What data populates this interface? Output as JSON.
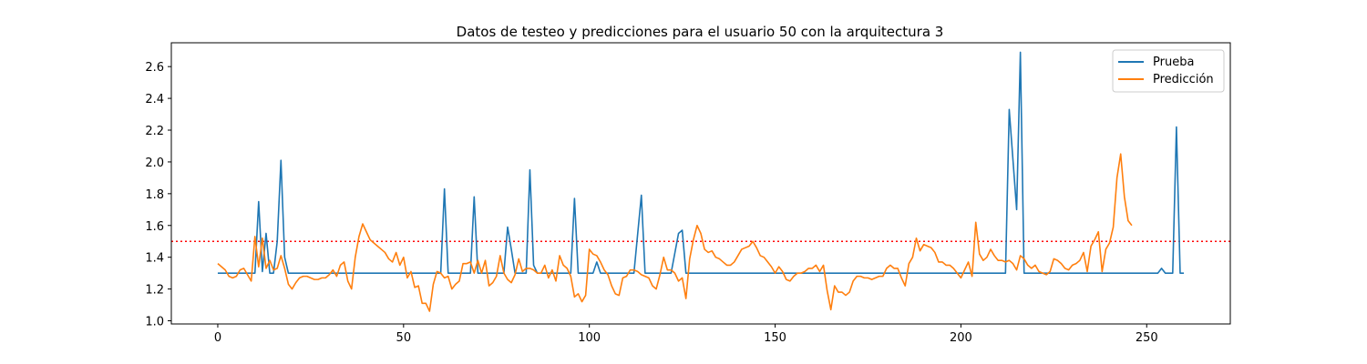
{
  "chart_data": {
    "type": "line",
    "title": "Datos de testeo y predicciones para el usuario 50 con la arquitectura 3",
    "xlabel": "",
    "ylabel": "",
    "xlim": [
      -12.5,
      272.5
    ],
    "ylim": [
      0.98,
      2.75
    ],
    "xticks": [
      0,
      50,
      100,
      150,
      200,
      250
    ],
    "yticks": [
      1.0,
      1.2,
      1.4,
      1.6,
      1.8,
      2.0,
      2.2,
      2.4,
      2.6
    ],
    "grid": false,
    "legend_position": "top-right",
    "threshold": {
      "value": 1.5,
      "color": "#ff0000",
      "style": "dotted"
    },
    "series": [
      {
        "name": "Prueba",
        "color": "#1f77b4",
        "points": [
          [
            0,
            1.3
          ],
          [
            10,
            1.3
          ],
          [
            11,
            1.75
          ],
          [
            12,
            1.31
          ],
          [
            13,
            1.55
          ],
          [
            14,
            1.3
          ],
          [
            15,
            1.3
          ],
          [
            16,
            1.5
          ],
          [
            17,
            2.01
          ],
          [
            18,
            1.4
          ],
          [
            19,
            1.3
          ],
          [
            60,
            1.3
          ],
          [
            61,
            1.83
          ],
          [
            62,
            1.3
          ],
          [
            68,
            1.3
          ],
          [
            69,
            1.78
          ],
          [
            70,
            1.3
          ],
          [
            77,
            1.3
          ],
          [
            78,
            1.59
          ],
          [
            79,
            1.45
          ],
          [
            80,
            1.3
          ],
          [
            83,
            1.3
          ],
          [
            84,
            1.95
          ],
          [
            85,
            1.35
          ],
          [
            86,
            1.3
          ],
          [
            95,
            1.3
          ],
          [
            96,
            1.77
          ],
          [
            97,
            1.3
          ],
          [
            101,
            1.3
          ],
          [
            102,
            1.37
          ],
          [
            103,
            1.3
          ],
          [
            112,
            1.3
          ],
          [
            114,
            1.79
          ],
          [
            115,
            1.3
          ],
          [
            122,
            1.3
          ],
          [
            124,
            1.55
          ],
          [
            125,
            1.57
          ],
          [
            126,
            1.3
          ],
          [
            212,
            1.3
          ],
          [
            213,
            2.33
          ],
          [
            215,
            1.7
          ],
          [
            216,
            2.69
          ],
          [
            217,
            1.3
          ],
          [
            253,
            1.3
          ],
          [
            254,
            1.33
          ],
          [
            255,
            1.3
          ],
          [
            257,
            1.3
          ],
          [
            258,
            2.22
          ],
          [
            259,
            1.3
          ],
          [
            260,
            1.3
          ]
        ]
      },
      {
        "name": "Predicción",
        "color": "#ff7f0e",
        "points": [
          [
            0,
            1.36
          ],
          [
            1,
            1.34
          ],
          [
            2,
            1.32
          ],
          [
            3,
            1.28
          ],
          [
            4,
            1.27
          ],
          [
            5,
            1.28
          ],
          [
            6,
            1.32
          ],
          [
            7,
            1.33
          ],
          [
            8,
            1.29
          ],
          [
            9,
            1.25
          ],
          [
            10,
            1.53
          ],
          [
            11,
            1.34
          ],
          [
            12,
            1.52
          ],
          [
            13,
            1.33
          ],
          [
            14,
            1.38
          ],
          [
            15,
            1.32
          ],
          [
            16,
            1.33
          ],
          [
            17,
            1.41
          ],
          [
            18,
            1.33
          ],
          [
            19,
            1.23
          ],
          [
            20,
            1.2
          ],
          [
            21,
            1.24
          ],
          [
            22,
            1.27
          ],
          [
            23,
            1.28
          ],
          [
            24,
            1.28
          ],
          [
            25,
            1.27
          ],
          [
            26,
            1.26
          ],
          [
            27,
            1.26
          ],
          [
            28,
            1.27
          ],
          [
            29,
            1.27
          ],
          [
            30,
            1.29
          ],
          [
            31,
            1.32
          ],
          [
            32,
            1.28
          ],
          [
            33,
            1.35
          ],
          [
            34,
            1.37
          ],
          [
            35,
            1.25
          ],
          [
            36,
            1.2
          ],
          [
            37,
            1.4
          ],
          [
            38,
            1.53
          ],
          [
            39,
            1.61
          ],
          [
            40,
            1.56
          ],
          [
            41,
            1.51
          ],
          [
            42,
            1.49
          ],
          [
            43,
            1.47
          ],
          [
            44,
            1.45
          ],
          [
            45,
            1.43
          ],
          [
            46,
            1.39
          ],
          [
            47,
            1.37
          ],
          [
            48,
            1.43
          ],
          [
            49,
            1.35
          ],
          [
            50,
            1.4
          ],
          [
            51,
            1.27
          ],
          [
            52,
            1.31
          ],
          [
            53,
            1.21
          ],
          [
            54,
            1.22
          ],
          [
            55,
            1.11
          ],
          [
            56,
            1.11
          ],
          [
            57,
            1.06
          ],
          [
            58,
            1.23
          ],
          [
            59,
            1.31
          ],
          [
            60,
            1.3
          ],
          [
            61,
            1.27
          ],
          [
            62,
            1.28
          ],
          [
            63,
            1.2
          ],
          [
            64,
            1.23
          ],
          [
            65,
            1.25
          ],
          [
            66,
            1.36
          ],
          [
            67,
            1.36
          ],
          [
            68,
            1.37
          ],
          [
            69,
            1.3
          ],
          [
            70,
            1.38
          ],
          [
            71,
            1.3
          ],
          [
            72,
            1.38
          ],
          [
            73,
            1.22
          ],
          [
            74,
            1.24
          ],
          [
            75,
            1.28
          ],
          [
            76,
            1.41
          ],
          [
            77,
            1.3
          ],
          [
            78,
            1.26
          ],
          [
            79,
            1.24
          ],
          [
            80,
            1.29
          ],
          [
            81,
            1.39
          ],
          [
            82,
            1.31
          ],
          [
            83,
            1.33
          ],
          [
            84,
            1.33
          ],
          [
            85,
            1.32
          ],
          [
            86,
            1.3
          ],
          [
            87,
            1.3
          ],
          [
            88,
            1.35
          ],
          [
            89,
            1.27
          ],
          [
            90,
            1.32
          ],
          [
            91,
            1.25
          ],
          [
            92,
            1.41
          ],
          [
            93,
            1.35
          ],
          [
            94,
            1.33
          ],
          [
            95,
            1.28
          ],
          [
            96,
            1.15
          ],
          [
            97,
            1.17
          ],
          [
            98,
            1.12
          ],
          [
            99,
            1.16
          ],
          [
            100,
            1.45
          ],
          [
            101,
            1.42
          ],
          [
            102,
            1.41
          ],
          [
            103,
            1.37
          ],
          [
            104,
            1.32
          ],
          [
            105,
            1.29
          ],
          [
            106,
            1.22
          ],
          [
            107,
            1.17
          ],
          [
            108,
            1.16
          ],
          [
            109,
            1.27
          ],
          [
            110,
            1.28
          ],
          [
            111,
            1.32
          ],
          [
            112,
            1.32
          ],
          [
            113,
            1.31
          ],
          [
            114,
            1.29
          ],
          [
            115,
            1.28
          ],
          [
            116,
            1.27
          ],
          [
            117,
            1.22
          ],
          [
            118,
            1.2
          ],
          [
            119,
            1.29
          ],
          [
            120,
            1.4
          ],
          [
            121,
            1.32
          ],
          [
            122,
            1.32
          ],
          [
            123,
            1.3
          ],
          [
            124,
            1.25
          ],
          [
            125,
            1.27
          ],
          [
            126,
            1.14
          ],
          [
            127,
            1.39
          ],
          [
            128,
            1.51
          ],
          [
            129,
            1.6
          ],
          [
            130,
            1.55
          ],
          [
            131,
            1.45
          ],
          [
            132,
            1.43
          ],
          [
            133,
            1.44
          ],
          [
            134,
            1.4
          ],
          [
            135,
            1.39
          ],
          [
            136,
            1.37
          ],
          [
            137,
            1.35
          ],
          [
            138,
            1.35
          ],
          [
            139,
            1.37
          ],
          [
            140,
            1.41
          ],
          [
            141,
            1.45
          ],
          [
            142,
            1.46
          ],
          [
            143,
            1.47
          ],
          [
            144,
            1.5
          ],
          [
            145,
            1.46
          ],
          [
            146,
            1.41
          ],
          [
            147,
            1.4
          ],
          [
            148,
            1.37
          ],
          [
            149,
            1.34
          ],
          [
            150,
            1.3
          ],
          [
            151,
            1.34
          ],
          [
            152,
            1.31
          ],
          [
            153,
            1.26
          ],
          [
            154,
            1.25
          ],
          [
            155,
            1.28
          ],
          [
            156,
            1.3
          ],
          [
            157,
            1.3
          ],
          [
            158,
            1.31
          ],
          [
            159,
            1.33
          ],
          [
            160,
            1.33
          ],
          [
            161,
            1.35
          ],
          [
            162,
            1.31
          ],
          [
            163,
            1.35
          ],
          [
            164,
            1.19
          ],
          [
            165,
            1.07
          ],
          [
            166,
            1.22
          ],
          [
            167,
            1.18
          ],
          [
            168,
            1.18
          ],
          [
            169,
            1.16
          ],
          [
            170,
            1.18
          ],
          [
            171,
            1.25
          ],
          [
            172,
            1.28
          ],
          [
            173,
            1.28
          ],
          [
            174,
            1.27
          ],
          [
            175,
            1.27
          ],
          [
            176,
            1.26
          ],
          [
            177,
            1.27
          ],
          [
            178,
            1.28
          ],
          [
            179,
            1.28
          ],
          [
            180,
            1.33
          ],
          [
            181,
            1.35
          ],
          [
            182,
            1.33
          ],
          [
            183,
            1.33
          ],
          [
            184,
            1.27
          ],
          [
            185,
            1.22
          ],
          [
            186,
            1.36
          ],
          [
            187,
            1.4
          ],
          [
            188,
            1.52
          ],
          [
            189,
            1.44
          ],
          [
            190,
            1.48
          ],
          [
            191,
            1.47
          ],
          [
            192,
            1.46
          ],
          [
            193,
            1.43
          ],
          [
            194,
            1.37
          ],
          [
            195,
            1.37
          ],
          [
            196,
            1.35
          ],
          [
            197,
            1.35
          ],
          [
            198,
            1.33
          ],
          [
            199,
            1.3
          ],
          [
            200,
            1.27
          ],
          [
            201,
            1.32
          ],
          [
            202,
            1.37
          ],
          [
            203,
            1.28
          ],
          [
            204,
            1.62
          ],
          [
            205,
            1.42
          ],
          [
            206,
            1.38
          ],
          [
            207,
            1.4
          ],
          [
            208,
            1.45
          ],
          [
            209,
            1.41
          ],
          [
            210,
            1.38
          ],
          [
            211,
            1.38
          ],
          [
            212,
            1.37
          ],
          [
            213,
            1.38
          ],
          [
            214,
            1.36
          ],
          [
            215,
            1.32
          ],
          [
            216,
            1.41
          ],
          [
            217,
            1.39
          ],
          [
            218,
            1.35
          ],
          [
            219,
            1.33
          ],
          [
            220,
            1.35
          ],
          [
            221,
            1.31
          ],
          [
            222,
            1.3
          ],
          [
            223,
            1.29
          ],
          [
            224,
            1.31
          ],
          [
            225,
            1.39
          ],
          [
            226,
            1.38
          ],
          [
            227,
            1.36
          ],
          [
            228,
            1.33
          ],
          [
            229,
            1.32
          ],
          [
            230,
            1.35
          ],
          [
            231,
            1.36
          ],
          [
            232,
            1.38
          ],
          [
            233,
            1.43
          ],
          [
            234,
            1.31
          ],
          [
            235,
            1.47
          ],
          [
            236,
            1.51
          ],
          [
            237,
            1.56
          ],
          [
            238,
            1.31
          ],
          [
            239,
            1.45
          ],
          [
            240,
            1.49
          ],
          [
            241,
            1.59
          ],
          [
            242,
            1.9
          ],
          [
            243,
            2.05
          ],
          [
            244,
            1.78
          ],
          [
            245,
            1.63
          ],
          [
            246,
            1.6
          ]
        ]
      }
    ]
  }
}
